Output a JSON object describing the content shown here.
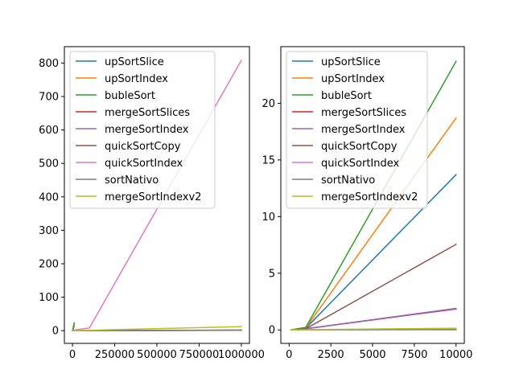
{
  "chart_data": [
    {
      "type": "line",
      "xlim": [
        -48000,
        1048000
      ],
      "ylim": [
        -38,
        849
      ],
      "xticks": [
        {
          "value": 0,
          "label": "0"
        },
        {
          "value": 250000,
          "label": "250000"
        },
        {
          "value": 500000,
          "label": "500000"
        },
        {
          "value": 750000,
          "label": "750000"
        },
        {
          "value": 1000000,
          "label": "1000000"
        }
      ],
      "yticks": [
        {
          "value": 0,
          "label": "0"
        },
        {
          "value": 100,
          "label": "100"
        },
        {
          "value": 200,
          "label": "200"
        },
        {
          "value": 300,
          "label": "300"
        },
        {
          "value": 400,
          "label": "400"
        },
        {
          "value": 500,
          "label": "500"
        },
        {
          "value": 600,
          "label": "600"
        },
        {
          "value": 700,
          "label": "700"
        },
        {
          "value": 800,
          "label": "800"
        }
      ],
      "legend_position": "upper-left",
      "series": [
        {
          "name": "upSortSlice",
          "color": "#1f77b4",
          "x": [
            100,
            1000,
            10000
          ],
          "y": [
            0,
            0.15,
            13.7
          ]
        },
        {
          "name": "upSortIndex",
          "color": "#ff7f0e",
          "x": [
            100,
            1000,
            10000
          ],
          "y": [
            0,
            0.18,
            18.7
          ]
        },
        {
          "name": "bubleSort",
          "color": "#2ca02c",
          "x": [
            100,
            1000,
            10000
          ],
          "y": [
            0,
            0.23,
            23.7
          ]
        },
        {
          "name": "mergeSortSlices",
          "color": "#d62728",
          "x": [
            100,
            1000,
            10000,
            100000,
            1000000
          ],
          "y": [
            0,
            0,
            0.01,
            0.15,
            1.8
          ]
        },
        {
          "name": "mergeSortIndex",
          "color": "#9467bd",
          "x": [
            100,
            1000,
            10000,
            100000,
            1000000
          ],
          "y": [
            0,
            0,
            0.01,
            0.12,
            1.5
          ]
        },
        {
          "name": "quickSortCopy",
          "color": "#8c564b",
          "x": [
            100,
            1000,
            10000,
            100000,
            1000000
          ],
          "y": [
            0,
            0,
            0.01,
            0.1,
            1.2
          ]
        },
        {
          "name": "quickSortIndex",
          "color": "#e377c2",
          "x": [
            100,
            1000,
            10000,
            100000,
            1000000
          ],
          "y": [
            0,
            0.05,
            1.9,
            8,
            808
          ]
        },
        {
          "name": "sortNativo",
          "color": "#7f7f7f",
          "x": [
            100,
            1000,
            10000,
            100000,
            1000000
          ],
          "y": [
            0,
            0,
            0.01,
            0.1,
            1
          ]
        },
        {
          "name": "mergeSortIndexv2",
          "color": "#bcbd22",
          "x": [
            100,
            1000,
            10000,
            100000,
            1000000
          ],
          "y": [
            0,
            0.01,
            0.1,
            1.2,
            12
          ]
        }
      ]
    },
    {
      "type": "line",
      "xlim": [
        -495,
        10495
      ],
      "ylim": [
        -1.19,
        25
      ],
      "xticks": [
        {
          "value": 0,
          "label": "0"
        },
        {
          "value": 2500,
          "label": "2500"
        },
        {
          "value": 5000,
          "label": "5000"
        },
        {
          "value": 7500,
          "label": "7500"
        },
        {
          "value": 10000,
          "label": "10000"
        }
      ],
      "yticks": [
        {
          "value": 0,
          "label": "0"
        },
        {
          "value": 5,
          "label": "5"
        },
        {
          "value": 10,
          "label": "10"
        },
        {
          "value": 15,
          "label": "15"
        },
        {
          "value": 20,
          "label": "20"
        }
      ],
      "legend_position": "upper-left",
      "series": [
        {
          "name": "upSortSlice",
          "color": "#1f77b4",
          "x": [
            100,
            1000,
            10000
          ],
          "y": [
            0,
            0.15,
            13.7
          ]
        },
        {
          "name": "upSortIndex",
          "color": "#ff7f0e",
          "x": [
            100,
            1000,
            10000
          ],
          "y": [
            0,
            0.18,
            18.7
          ]
        },
        {
          "name": "bubleSort",
          "color": "#2ca02c",
          "x": [
            100,
            1000,
            10000
          ],
          "y": [
            0,
            0.23,
            23.7
          ]
        },
        {
          "name": "mergeSortSlices",
          "color": "#d62728",
          "x": [
            100,
            1000,
            10000
          ],
          "y": [
            0,
            0.1,
            1.85
          ]
        },
        {
          "name": "mergeSortIndex",
          "color": "#9467bd",
          "x": [
            100,
            1000,
            10000
          ],
          "y": [
            0,
            0.1,
            1.9
          ]
        },
        {
          "name": "quickSortCopy",
          "color": "#8c564b",
          "x": [
            100,
            1000,
            10000
          ],
          "y": [
            0,
            0.1,
            7.55
          ]
        },
        {
          "name": "quickSortIndex",
          "color": "#e377c2",
          "x": [
            100,
            1000,
            10000
          ],
          "y": [
            0,
            0.02,
            0.05
          ]
        },
        {
          "name": "sortNativo",
          "color": "#7f7f7f",
          "x": [
            100,
            1000,
            10000
          ],
          "y": [
            0,
            0,
            0.02
          ]
        },
        {
          "name": "mergeSortIndexv2",
          "color": "#bcbd22",
          "x": [
            100,
            1000,
            10000
          ],
          "y": [
            0,
            0.02,
            0.15
          ]
        }
      ]
    }
  ]
}
